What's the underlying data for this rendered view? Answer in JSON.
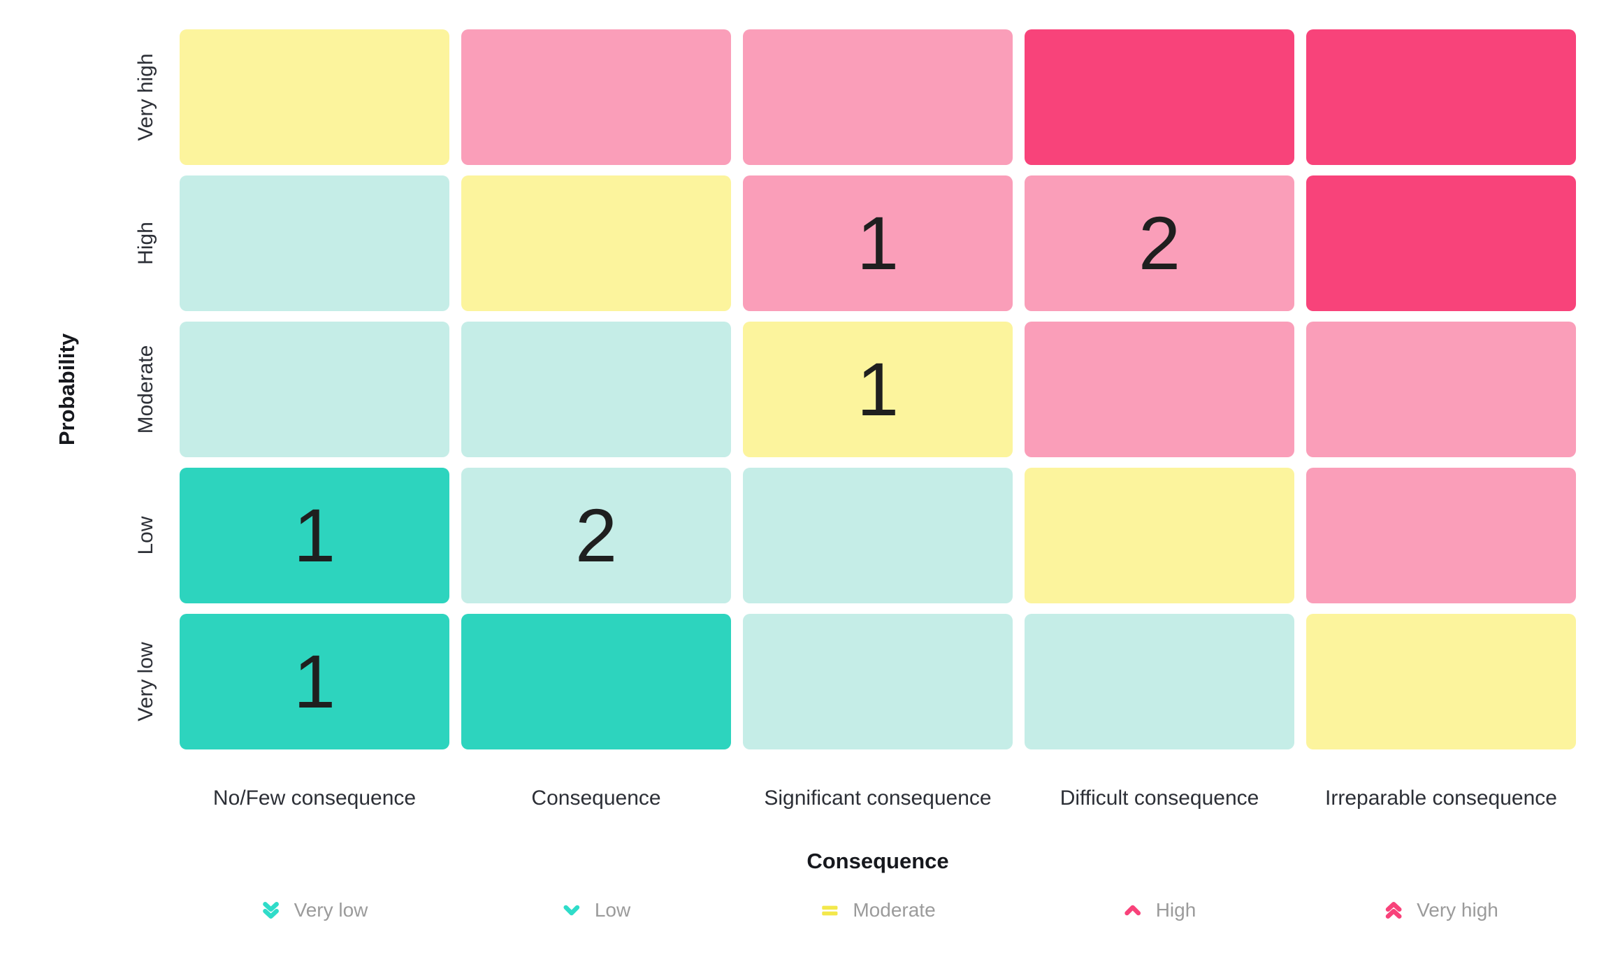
{
  "severity_colors": {
    "Very low": "#2dd4be",
    "Low": "#c5ede7",
    "Moderate": "#fcf49d",
    "High": "#fa9eb9",
    "Very high": "#f8437a"
  },
  "legend": {
    "items": [
      {
        "label": "Very low",
        "icon": "double-chevron-down-icon",
        "icon_color": "#2fdcc9"
      },
      {
        "label": "Low",
        "icon": "chevron-down-icon",
        "icon_color": "#2fdcc9"
      },
      {
        "label": "Moderate",
        "icon": "equals-icon",
        "icon_color": "#f3e84b"
      },
      {
        "label": "High",
        "icon": "chevron-up-icon",
        "icon_color": "#f8427a"
      },
      {
        "label": "Very high",
        "icon": "double-chevron-up-icon",
        "icon_color": "#f8427a"
      }
    ]
  },
  "chart_data": {
    "type": "heatmap",
    "title": "",
    "xlabel": "Consequence",
    "ylabel": "Probability",
    "x_categories": [
      "No/Few consequence",
      "Consequence",
      "Significant consequence",
      "Difficult consequence",
      "Irreparable consequence"
    ],
    "y_categories_top_to_bottom": [
      "Very high",
      "High",
      "Moderate",
      "Low",
      "Very low"
    ],
    "legend_position": "bottom",
    "grid": "off",
    "cells": [
      {
        "row": "Very high",
        "col": "No/Few consequence",
        "severity": "Moderate",
        "count": null
      },
      {
        "row": "Very high",
        "col": "Consequence",
        "severity": "High",
        "count": null
      },
      {
        "row": "Very high",
        "col": "Significant consequence",
        "severity": "High",
        "count": null
      },
      {
        "row": "Very high",
        "col": "Difficult consequence",
        "severity": "Very high",
        "count": null
      },
      {
        "row": "Very high",
        "col": "Irreparable consequence",
        "severity": "Very high",
        "count": null
      },
      {
        "row": "High",
        "col": "No/Few consequence",
        "severity": "Low",
        "count": null
      },
      {
        "row": "High",
        "col": "Consequence",
        "severity": "Moderate",
        "count": null
      },
      {
        "row": "High",
        "col": "Significant consequence",
        "severity": "High",
        "count": 1
      },
      {
        "row": "High",
        "col": "Difficult consequence",
        "severity": "High",
        "count": 2
      },
      {
        "row": "High",
        "col": "Irreparable consequence",
        "severity": "Very high",
        "count": null
      },
      {
        "row": "Moderate",
        "col": "No/Few consequence",
        "severity": "Low",
        "count": null
      },
      {
        "row": "Moderate",
        "col": "Consequence",
        "severity": "Low",
        "count": null
      },
      {
        "row": "Moderate",
        "col": "Significant consequence",
        "severity": "Moderate",
        "count": 1
      },
      {
        "row": "Moderate",
        "col": "Difficult consequence",
        "severity": "High",
        "count": null
      },
      {
        "row": "Moderate",
        "col": "Irreparable consequence",
        "severity": "High",
        "count": null
      },
      {
        "row": "Low",
        "col": "No/Few consequence",
        "severity": "Very low",
        "count": 1
      },
      {
        "row": "Low",
        "col": "Consequence",
        "severity": "Low",
        "count": 2
      },
      {
        "row": "Low",
        "col": "Significant consequence",
        "severity": "Low",
        "count": null
      },
      {
        "row": "Low",
        "col": "Difficult consequence",
        "severity": "Moderate",
        "count": null
      },
      {
        "row": "Low",
        "col": "Irreparable consequence",
        "severity": "High",
        "count": null
      },
      {
        "row": "Very low",
        "col": "No/Few consequence",
        "severity": "Very low",
        "count": 1
      },
      {
        "row": "Very low",
        "col": "Consequence",
        "severity": "Very low",
        "count": null
      },
      {
        "row": "Very low",
        "col": "Significant consequence",
        "severity": "Low",
        "count": null
      },
      {
        "row": "Very low",
        "col": "Difficult consequence",
        "severity": "Low",
        "count": null
      },
      {
        "row": "Very low",
        "col": "Irreparable consequence",
        "severity": "Moderate",
        "count": null
      }
    ]
  }
}
